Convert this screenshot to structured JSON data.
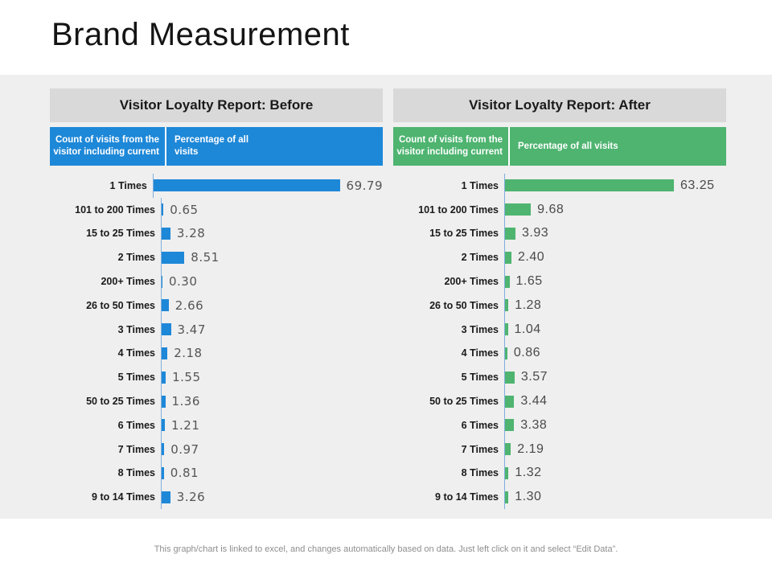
{
  "slide": {
    "title": "Brand Measurement",
    "footer": "This graph/chart is linked to excel, and changes automatically based on data. Just left click on it and select “Edit Data”."
  },
  "colors": {
    "before_accent": "#1e88d8",
    "after_accent": "#4eb470",
    "panel_title_bg": "#d9d9d9",
    "content_bg": "#efefef",
    "axis_line": "#7faedc",
    "value_text": "#4a4a4a",
    "footer_text": "#8e8e8e"
  },
  "charts": [
    {
      "title": "Visitor Loyalty Report: Before",
      "accent": "#1e88d8",
      "col1_header": "Count of visits from the visitor including current",
      "col2_header": "Percentage of all visits",
      "rows": [
        {
          "label": "1 Times",
          "value": 69.79,
          "display": "69.79"
        },
        {
          "label": "101 to 200 Times",
          "value": 0.65,
          "display": "0.65"
        },
        {
          "label": "15 to 25 Times",
          "value": 3.28,
          "display": "3.28"
        },
        {
          "label": "2 Times",
          "value": 8.51,
          "display": "8.51"
        },
        {
          "label": "200+ Times",
          "value": 0.3,
          "display": "0.30"
        },
        {
          "label": "26 to 50 Times",
          "value": 2.66,
          "display": "2.66"
        },
        {
          "label": "3 Times",
          "value": 3.47,
          "display": "3.47"
        },
        {
          "label": "4 Times",
          "value": 2.18,
          "display": "2.18"
        },
        {
          "label": "5 Times",
          "value": 1.55,
          "display": "1.55"
        },
        {
          "label": "50 to 25 Times",
          "value": 1.36,
          "display": "1.36"
        },
        {
          "label": "6 Times",
          "value": 1.21,
          "display": "1.21"
        },
        {
          "label": "7 Times",
          "value": 0.97,
          "display": "0.97"
        },
        {
          "label": "8 Times",
          "value": 0.81,
          "display": "0.81"
        },
        {
          "label": "9 to 14 Times",
          "value": 3.26,
          "display": "3.26"
        }
      ]
    },
    {
      "title": "Visitor Loyalty Report: After",
      "accent": "#4eb470",
      "col1_header": "Count of visits from the visitor including current",
      "col2_header": "Percentage of all visits",
      "rows": [
        {
          "label": "1 Times",
          "value": 63.25,
          "display": "63.25"
        },
        {
          "label": "101 to 200 Times",
          "value": 9.68,
          "display": "9.68"
        },
        {
          "label": "15 to 25 Times",
          "value": 3.93,
          "display": "3.93"
        },
        {
          "label": "2 Times",
          "value": 2.4,
          "display": "2.40"
        },
        {
          "label": "200+ Times",
          "value": 1.65,
          "display": "1.65"
        },
        {
          "label": "26 to 50 Times",
          "value": 1.28,
          "display": "1.28"
        },
        {
          "label": "3 Times",
          "value": 1.04,
          "display": "1.04"
        },
        {
          "label": "4 Times",
          "value": 0.86,
          "display": "0.86"
        },
        {
          "label": "5 Times",
          "value": 3.57,
          "display": "3.57"
        },
        {
          "label": "50 to 25 Times",
          "value": 3.44,
          "display": "3.44"
        },
        {
          "label": "6 Times",
          "value": 3.38,
          "display": "3.38"
        },
        {
          "label": "7 Times",
          "value": 2.19,
          "display": "2.19"
        },
        {
          "label": "8 Times",
          "value": 1.32,
          "display": "1.32"
        },
        {
          "label": "9 to 14 Times",
          "value": 1.3,
          "display": "1.30"
        }
      ]
    }
  ],
  "chart_data": [
    {
      "type": "bar",
      "orientation": "horizontal",
      "title": "Visitor Loyalty Report: Before",
      "categories": [
        "1 Times",
        "101 to 200 Times",
        "15 to 25 Times",
        "2 Times",
        "200+ Times",
        "26 to 50 Times",
        "3 Times",
        "4 Times",
        "5 Times",
        "50 to 25 Times",
        "6 Times",
        "7 Times",
        "8 Times",
        "9 to 14 Times"
      ],
      "values": [
        69.79,
        0.65,
        3.28,
        8.51,
        0.3,
        2.66,
        3.47,
        2.18,
        1.55,
        1.36,
        1.21,
        0.97,
        0.81,
        3.26
      ],
      "xlabel": "Percentage of all visits",
      "ylabel": "Count of visits from the visitor including current",
      "xlim": [
        0,
        75
      ],
      "grid": false,
      "legend": false,
      "data_labels": true,
      "series_color": "#1e88d8"
    },
    {
      "type": "bar",
      "orientation": "horizontal",
      "title": "Visitor Loyalty Report: After",
      "categories": [
        "1 Times",
        "101 to 200 Times",
        "15 to 25 Times",
        "2 Times",
        "200+ Times",
        "26 to 50 Times",
        "3 Times",
        "4 Times",
        "5 Times",
        "50 to 25 Times",
        "6 Times",
        "7 Times",
        "8 Times",
        "9 to 14 Times"
      ],
      "values": [
        63.25,
        9.68,
        3.93,
        2.4,
        1.65,
        1.28,
        1.04,
        0.86,
        3.57,
        3.44,
        3.38,
        2.19,
        1.32,
        1.3
      ],
      "xlabel": "Percentage of all visits",
      "ylabel": "Count of visits from the visitor including current",
      "xlim": [
        0,
        75
      ],
      "grid": false,
      "legend": false,
      "data_labels": true,
      "series_color": "#4eb470"
    }
  ]
}
